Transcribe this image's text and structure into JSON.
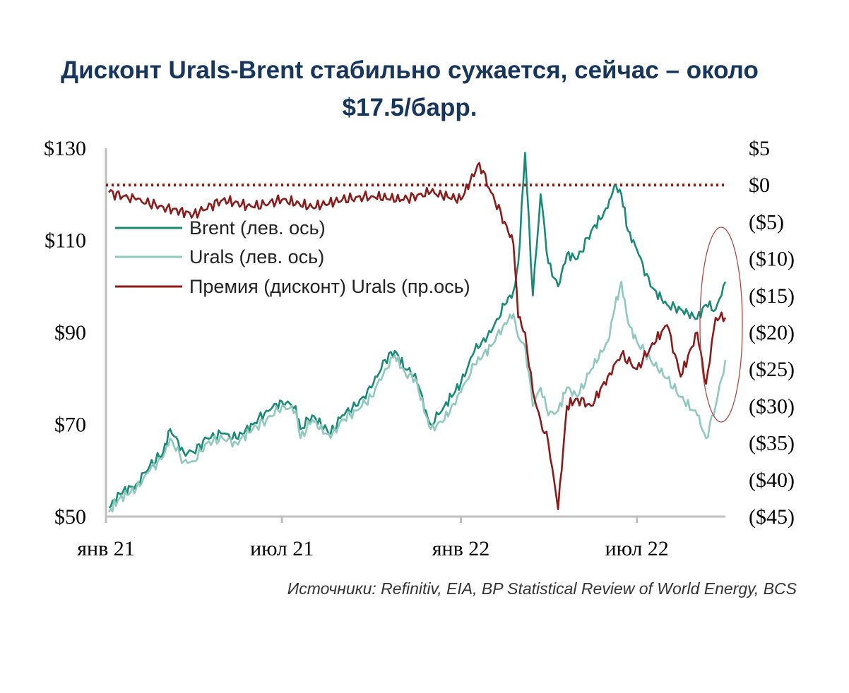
{
  "title": {
    "line1": "Дисконт Urals-Brent стабильно сужается, сейчас – около",
    "line2": "$17.5/барр."
  },
  "source": "Источники: Refinitiv, EIA, BP Statistical Review of World Energy, BCS",
  "colors": {
    "brent": "#1a8a76",
    "urals": "#8fc9bd",
    "premium": "#8b1a1a",
    "axis": "#bfbfbf",
    "title": "#17365d",
    "ellipse": "#b03a3a"
  },
  "chart_data": {
    "type": "line",
    "x_type": "date",
    "x_ticks": [
      {
        "date": "2021-01-01",
        "label": "янв 21"
      },
      {
        "date": "2021-07-01",
        "label": "июл 21"
      },
      {
        "date": "2022-01-01",
        "label": "янв 22"
      },
      {
        "date": "2022-07-01",
        "label": "июл 22"
      }
    ],
    "x_range": [
      "2021-01-01",
      "2022-09-30"
    ],
    "y_left": {
      "min": 50,
      "max": 130,
      "ticks": [
        50,
        70,
        90,
        110,
        130
      ],
      "labels": [
        "$50",
        "$70",
        "$90",
        "$110",
        "$130"
      ]
    },
    "y_right": {
      "min": -45,
      "max": 5,
      "ticks": [
        5,
        0,
        -5,
        -10,
        -15,
        -20,
        -25,
        -30,
        -35,
        -40,
        -45
      ],
      "labels": [
        "$5",
        "$0",
        "($5)",
        "($10)",
        "($15)",
        "($20)",
        "($25)",
        "($30)",
        "($35)",
        "($40)",
        "($45)"
      ]
    },
    "reference_line": {
      "axis": "right",
      "value": 0,
      "style": "dotted"
    },
    "highlight": "ellipse around the latest values",
    "legend": {
      "position": "upper-left"
    },
    "series": [
      {
        "name": "Brent (лев. ось)",
        "axis": "left",
        "x": [
          "2021-01-04",
          "2021-01-15",
          "2021-02-01",
          "2021-02-15",
          "2021-03-01",
          "2021-03-08",
          "2021-03-22",
          "2021-04-01",
          "2021-04-15",
          "2021-05-01",
          "2021-05-15",
          "2021-06-01",
          "2021-06-15",
          "2021-07-01",
          "2021-07-15",
          "2021-07-20",
          "2021-08-01",
          "2021-08-20",
          "2021-09-01",
          "2021-09-15",
          "2021-10-01",
          "2021-10-15",
          "2021-10-25",
          "2021-11-05",
          "2021-11-15",
          "2021-11-26",
          "2021-12-01",
          "2021-12-15",
          "2022-01-01",
          "2022-01-15",
          "2022-02-01",
          "2022-02-15",
          "2022-02-24",
          "2022-03-01",
          "2022-03-08",
          "2022-03-16",
          "2022-03-24",
          "2022-04-01",
          "2022-04-11",
          "2022-04-20",
          "2022-05-01",
          "2022-05-15",
          "2022-06-01",
          "2022-06-08",
          "2022-06-15",
          "2022-06-22",
          "2022-07-01",
          "2022-07-15",
          "2022-08-01",
          "2022-08-15",
          "2022-09-01",
          "2022-09-10",
          "2022-09-20",
          "2022-09-30"
        ],
        "y": [
          52,
          55,
          57,
          61,
          64,
          69,
          64,
          64,
          67,
          68,
          67,
          70,
          73,
          75,
          74,
          69,
          72,
          68,
          72,
          74,
          78,
          84,
          86,
          82,
          81,
          73,
          70,
          74,
          79,
          86,
          90,
          96,
          99,
          105,
          129,
          98,
          120,
          105,
          100,
          107,
          106,
          112,
          117,
          122,
          120,
          112,
          108,
          100,
          96,
          95,
          93,
          96,
          95,
          101
        ]
      },
      {
        "name": "Urals (лев. ось)",
        "axis": "left",
        "x": [
          "2021-01-04",
          "2021-01-15",
          "2021-02-01",
          "2021-02-15",
          "2021-03-01",
          "2021-03-08",
          "2021-03-22",
          "2021-04-01",
          "2021-04-15",
          "2021-05-01",
          "2021-05-15",
          "2021-06-01",
          "2021-06-15",
          "2021-07-01",
          "2021-07-15",
          "2021-07-20",
          "2021-08-01",
          "2021-08-20",
          "2021-09-01",
          "2021-09-15",
          "2021-10-01",
          "2021-10-15",
          "2021-10-25",
          "2021-11-05",
          "2021-11-15",
          "2021-11-26",
          "2021-12-01",
          "2021-12-15",
          "2022-01-01",
          "2022-01-15",
          "2022-02-01",
          "2022-02-15",
          "2022-02-24",
          "2022-03-01",
          "2022-03-08",
          "2022-03-16",
          "2022-03-24",
          "2022-04-01",
          "2022-04-11",
          "2022-04-20",
          "2022-05-01",
          "2022-05-15",
          "2022-06-01",
          "2022-06-08",
          "2022-06-15",
          "2022-06-22",
          "2022-07-01",
          "2022-07-15",
          "2022-08-01",
          "2022-08-15",
          "2022-09-01",
          "2022-09-10",
          "2022-09-20",
          "2022-09-30"
        ],
        "y": [
          51,
          54,
          56,
          60,
          63,
          67,
          62,
          62,
          66,
          67,
          66,
          69,
          71,
          74,
          73,
          67,
          71,
          67,
          71,
          73,
          76,
          82,
          85,
          81,
          80,
          72,
          69,
          71,
          77,
          83,
          87,
          92,
          94,
          89,
          87,
          74,
          78,
          72,
          73,
          78,
          76,
          82,
          88,
          95,
          101,
          92,
          88,
          84,
          80,
          76,
          72,
          67,
          74,
          84
        ]
      },
      {
        "name": "Премия (дисконт) Urals (пр.ось)",
        "axis": "right",
        "x": [
          "2021-01-04",
          "2021-02-01",
          "2021-03-01",
          "2021-04-01",
          "2021-05-01",
          "2021-06-01",
          "2021-07-01",
          "2021-08-01",
          "2021-09-01",
          "2021-10-01",
          "2021-11-01",
          "2021-12-01",
          "2022-01-01",
          "2022-01-20",
          "2022-02-01",
          "2022-02-15",
          "2022-02-24",
          "2022-03-01",
          "2022-03-08",
          "2022-03-16",
          "2022-03-24",
          "2022-04-01",
          "2022-04-11",
          "2022-04-20",
          "2022-05-01",
          "2022-05-15",
          "2022-06-01",
          "2022-06-15",
          "2022-07-01",
          "2022-07-15",
          "2022-08-01",
          "2022-08-15",
          "2022-09-01",
          "2022-09-10",
          "2022-09-20",
          "2022-09-30"
        ],
        "y": [
          -1,
          -2,
          -3,
          -4,
          -2,
          -3,
          -2,
          -3,
          -2,
          -1.5,
          -2,
          -1,
          -2,
          3,
          -1,
          -5,
          -8,
          -18,
          -20,
          -28,
          -32,
          -35,
          -44,
          -30,
          -29,
          -30,
          -26,
          -23,
          -25,
          -22,
          -19,
          -26,
          -20,
          -27,
          -18,
          -18
        ]
      }
    ]
  }
}
